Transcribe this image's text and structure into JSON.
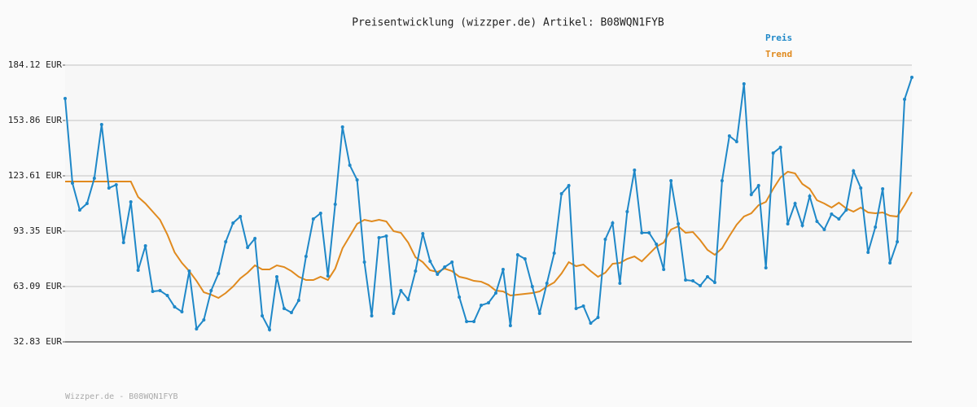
{
  "chart_data": {
    "type": "line",
    "title": "Preisentwicklung (wizzper.de) Artikel: B08WQN1FYB",
    "footer": "Wizzper.de - B08WQN1FYB",
    "legend": "top-right",
    "grid": true,
    "ylim": [
      32.83,
      184.12
    ],
    "yticks": [
      {
        "value": 32.83,
        "label": "32.83 EUR"
      },
      {
        "value": 63.09,
        "label": "63.09 EUR"
      },
      {
        "value": 93.35,
        "label": "93.35 EUR"
      },
      {
        "value": 123.61,
        "label": "123.61 EUR"
      },
      {
        "value": 153.86,
        "label": "153.86 EUR"
      },
      {
        "value": 184.12,
        "label": "184.12 EUR"
      }
    ],
    "series": [
      {
        "name": "Preis",
        "color": "#1f88c8",
        "markers": true,
        "values": [
          165.87,
          119.59,
          104.91,
          108.47,
          122.26,
          151.63,
          116.92,
          118.7,
          87.11,
          109.36,
          71.98,
          85.33,
          60.41,
          60.85,
          58.18,
          51.95,
          49.28,
          71.53,
          39.94,
          44.83,
          60.85,
          70.2,
          87.55,
          97.79,
          101.35,
          84.44,
          89.33,
          47.06,
          39.49,
          68.42,
          51.06,
          48.84,
          55.51,
          79.54,
          100.01,
          103.13,
          68.86,
          108.02,
          150.3,
          129.38,
          121.37,
          76.43,
          47.06,
          89.78,
          90.67,
          48.39,
          60.85,
          55.96,
          71.53,
          92.0,
          76.87,
          69.75,
          73.76,
          76.43,
          57.29,
          43.94,
          43.94,
          52.84,
          54.18,
          59.52,
          72.42,
          41.72,
          80.43,
          78.21,
          63.08,
          48.39,
          64.86,
          81.32,
          113.81,
          118.26,
          51.06,
          52.4,
          43.05,
          46.17,
          88.89,
          97.79,
          64.86,
          104.02,
          126.71,
          92.45,
          92.45,
          86.22,
          72.42,
          120.93,
          97.34,
          66.64,
          66.19,
          63.52,
          68.42,
          65.3,
          120.93,
          145.4,
          142.29,
          173.88,
          113.36,
          118.26,
          73.31,
          136.06,
          139.17,
          97.34,
          108.47,
          96.45,
          112.47,
          98.68,
          94.23,
          102.68,
          100.01,
          104.91,
          126.27,
          116.92,
          81.77,
          95.56,
          116.48,
          75.98,
          87.55,
          165.43,
          177.44
        ]
      },
      {
        "name": "Trend",
        "color": "#e08a1e",
        "markers": false,
        "values": [
          120.48,
          120.48,
          120.48,
          120.48,
          120.48,
          120.48,
          120.48,
          120.48,
          120.48,
          120.48,
          112.03,
          108.47,
          104.02,
          99.57,
          91.56,
          81.77,
          75.98,
          71.53,
          66.19,
          59.96,
          58.63,
          56.85,
          59.52,
          63.08,
          67.53,
          70.66,
          74.65,
          72.42,
          72.42,
          74.65,
          73.76,
          71.53,
          68.42,
          66.64,
          66.64,
          68.42,
          66.64,
          72.87,
          84.0,
          90.67,
          97.34,
          99.57,
          98.68,
          99.57,
          98.68,
          93.34,
          92.45,
          87.11,
          79.1,
          76.43,
          71.98,
          71.09,
          72.87,
          71.53,
          68.42,
          67.53,
          66.19,
          65.74,
          63.96,
          60.85,
          60.41,
          58.18,
          58.63,
          59.07,
          59.52,
          60.41,
          63.08,
          65.3,
          70.2,
          76.43,
          74.21,
          75.1,
          71.53,
          68.42,
          70.66,
          75.54,
          75.98,
          78.21,
          79.54,
          76.87,
          80.88,
          84.88,
          87.11,
          94.23,
          96.01,
          92.45,
          92.9,
          88.45,
          83.11,
          80.43,
          84.0,
          90.67,
          96.9,
          101.35,
          103.13,
          107.57,
          109.36,
          116.48,
          122.71,
          125.83,
          124.94,
          119.15,
          116.48,
          110.25,
          108.47,
          106.25,
          108.91,
          105.8,
          104.02,
          106.25,
          103.58,
          103.13,
          103.58,
          101.8,
          101.35,
          107.57,
          114.7
        ]
      }
    ]
  }
}
